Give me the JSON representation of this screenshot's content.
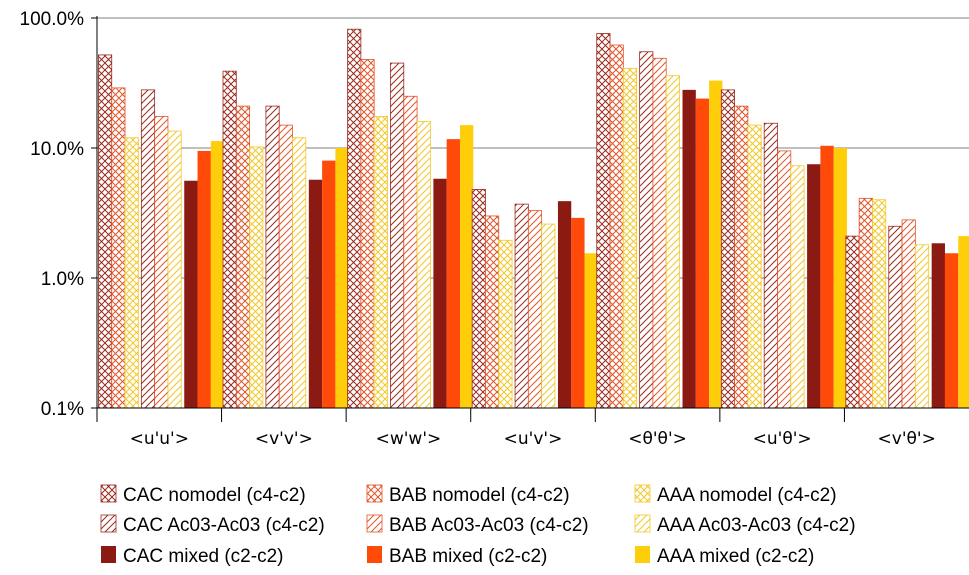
{
  "chart_data": {
    "type": "bar",
    "scale": "log",
    "ylim": [
      0.1,
      100
    ],
    "y_ticks": [
      "100.0%",
      "10.0%",
      "1.0%",
      "0.1%"
    ],
    "grid": true,
    "legend_position": "bottom",
    "categories": [
      "<u'u'>",
      "<v'v'>",
      "<w'w'>",
      "<u'v'>",
      "<θ'θ'>",
      "<u'θ'>",
      "<v'θ'>"
    ],
    "series": [
      {
        "name": "CAC nomodel (c4-c2)",
        "color": "#9b2a1e",
        "pattern": "cross",
        "values": [
          52,
          39,
          82,
          4.8,
          76,
          28,
          2.1
        ]
      },
      {
        "name": "BAB nomodel (c4-c2)",
        "color": "#e2552a",
        "pattern": "cross",
        "values": [
          29,
          21,
          48,
          3.0,
          62,
          21,
          4.1
        ]
      },
      {
        "name": "AAA nomodel (c4-c2)",
        "color": "#f2c92a",
        "pattern": "cross",
        "values": [
          12,
          10.2,
          17.5,
          1.95,
          41,
          15,
          4.0
        ]
      },
      {
        "name": "CAC Ac03-Ac03 (c4-c2)",
        "color": "#9b2a1e",
        "pattern": "diag",
        "values": [
          28,
          21,
          45,
          3.7,
          55,
          15.5,
          2.5
        ]
      },
      {
        "name": "BAB Ac03-Ac03 (c4-c2)",
        "color": "#e2552a",
        "pattern": "diag",
        "values": [
          17.5,
          15,
          25,
          3.3,
          49,
          9.5,
          2.8
        ]
      },
      {
        "name": "AAA Ac03-Ac03 (c4-c2)",
        "color": "#f2c92a",
        "pattern": "diag",
        "values": [
          13.5,
          12,
          16,
          2.6,
          36,
          7.3,
          1.8
        ]
      },
      {
        "name": "CAC mixed (c2-c2)",
        "color": "#8b1a12",
        "pattern": "solid",
        "values": [
          5.6,
          5.7,
          5.8,
          3.9,
          28,
          7.5,
          1.85
        ]
      },
      {
        "name": "BAB mixed (c2-c2)",
        "color": "#ff4a0a",
        "pattern": "solid",
        "values": [
          9.5,
          8.0,
          11.7,
          2.9,
          24,
          10.4,
          1.55
        ]
      },
      {
        "name": "AAA mixed (c2-c2)",
        "color": "#ffce0a",
        "pattern": "solid",
        "values": [
          11.3,
          10.0,
          15,
          1.55,
          33,
          10.0,
          2.1
        ]
      }
    ]
  }
}
